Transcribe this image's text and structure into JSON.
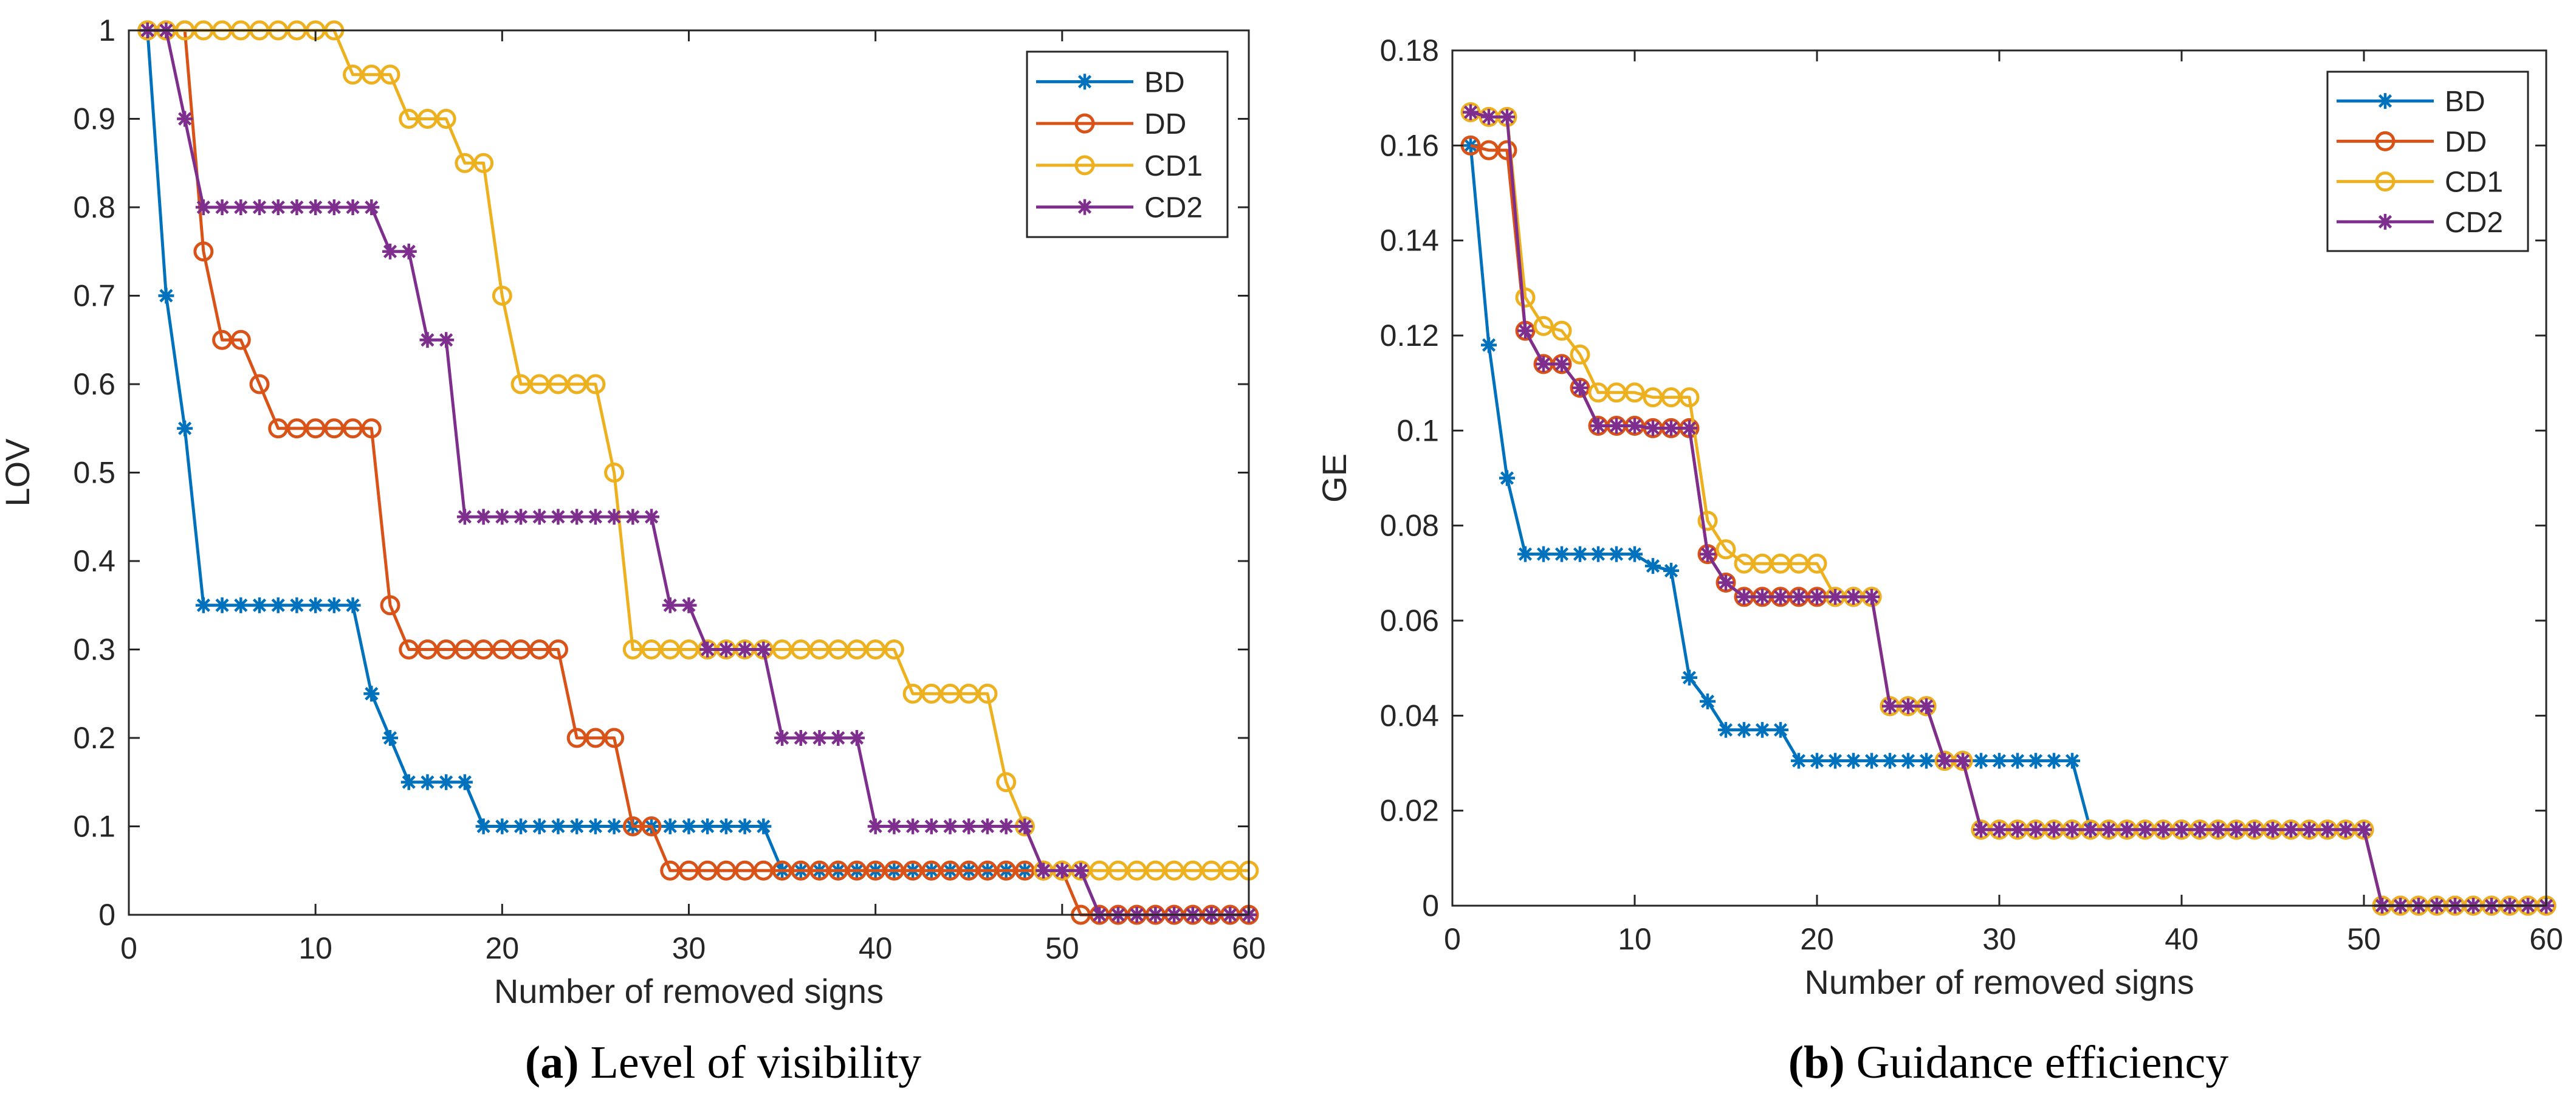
{
  "chart_data": [
    {
      "type": "line",
      "id": "a",
      "title": "",
      "xlabel": "Number of removed signs",
      "ylabel": "LOV",
      "xlim": [
        0,
        60
      ],
      "ylim": [
        0,
        1
      ],
      "xticks": [
        0,
        10,
        20,
        30,
        40,
        50,
        60
      ],
      "xtick_labels": [
        "0",
        "10",
        "20",
        "30",
        "40",
        "50",
        "60"
      ],
      "yticks": [
        0,
        0.1,
        0.2,
        0.3,
        0.4,
        0.5,
        0.6,
        0.7,
        0.8,
        0.9,
        1
      ],
      "ytick_labels": [
        "0",
        "0.1",
        "0.2",
        "0.3",
        "0.4",
        "0.5",
        "0.6",
        "0.7",
        "0.8",
        "0.9",
        "1"
      ],
      "legend_position": "top-right",
      "x": [
        1,
        2,
        3,
        4,
        5,
        6,
        7,
        8,
        9,
        10,
        11,
        12,
        13,
        14,
        15,
        16,
        17,
        18,
        19,
        20,
        21,
        22,
        23,
        24,
        25,
        26,
        27,
        28,
        29,
        30,
        31,
        32,
        33,
        34,
        35,
        36,
        37,
        38,
        39,
        40,
        41,
        42,
        43,
        44,
        45,
        46,
        47,
        48,
        49,
        50,
        51,
        52,
        53,
        54,
        55,
        56,
        57,
        58,
        59,
        60
      ],
      "series": [
        {
          "name": "BD",
          "marker": "asterisk",
          "color": "#0072BD",
          "values": [
            1,
            0.7,
            0.55,
            0.35,
            0.35,
            0.35,
            0.35,
            0.35,
            0.35,
            0.35,
            0.35,
            0.35,
            0.25,
            0.2,
            0.15,
            0.15,
            0.15,
            0.15,
            0.1,
            0.1,
            0.1,
            0.1,
            0.1,
            0.1,
            0.1,
            0.1,
            0.1,
            0.1,
            0.1,
            0.1,
            0.1,
            0.1,
            0.1,
            0.1,
            0.05,
            0.05,
            0.05,
            0.05,
            0.05,
            0.05,
            0.05,
            0.05,
            0.05,
            0.05,
            0.05,
            0.05,
            0.05,
            0.05,
            0.05,
            0.05,
            0.05,
            0,
            0,
            0,
            0,
            0,
            0,
            0,
            0,
            0
          ]
        },
        {
          "name": "DD",
          "marker": "circle",
          "color": "#D95319",
          "values": [
            1,
            1,
            1,
            0.75,
            0.65,
            0.65,
            0.6,
            0.55,
            0.55,
            0.55,
            0.55,
            0.55,
            0.55,
            0.35,
            0.3,
            0.3,
            0.3,
            0.3,
            0.3,
            0.3,
            0.3,
            0.3,
            0.3,
            0.2,
            0.2,
            0.2,
            0.1,
            0.1,
            0.05,
            0.05,
            0.05,
            0.05,
            0.05,
            0.05,
            0.05,
            0.05,
            0.05,
            0.05,
            0.05,
            0.05,
            0.05,
            0.05,
            0.05,
            0.05,
            0.05,
            0.05,
            0.05,
            0.05,
            0.05,
            0.05,
            0,
            0,
            0,
            0,
            0,
            0,
            0,
            0,
            0,
            0
          ]
        },
        {
          "name": "CD1",
          "marker": "circle",
          "color": "#EDB120",
          "values": [
            1,
            1,
            1,
            1,
            1,
            1,
            1,
            1,
            1,
            1,
            1,
            0.95,
            0.95,
            0.95,
            0.9,
            0.9,
            0.9,
            0.85,
            0.85,
            0.7,
            0.6,
            0.6,
            0.6,
            0.6,
            0.6,
            0.5,
            0.3,
            0.3,
            0.3,
            0.3,
            0.3,
            0.3,
            0.3,
            0.3,
            0.3,
            0.3,
            0.3,
            0.3,
            0.3,
            0.3,
            0.3,
            0.25,
            0.25,
            0.25,
            0.25,
            0.25,
            0.15,
            0.1,
            0.05,
            0.05,
            0.05,
            0.05,
            0.05,
            0.05,
            0.05,
            0.05,
            0.05,
            0.05,
            0.05,
            0.05
          ]
        },
        {
          "name": "CD2",
          "marker": "asterisk",
          "color": "#7E2F8E",
          "values": [
            1,
            1,
            0.9,
            0.8,
            0.8,
            0.8,
            0.8,
            0.8,
            0.8,
            0.8,
            0.8,
            0.8,
            0.8,
            0.75,
            0.75,
            0.65,
            0.65,
            0.45,
            0.45,
            0.45,
            0.45,
            0.45,
            0.45,
            0.45,
            0.45,
            0.45,
            0.45,
            0.45,
            0.35,
            0.35,
            0.3,
            0.3,
            0.3,
            0.3,
            0.2,
            0.2,
            0.2,
            0.2,
            0.2,
            0.1,
            0.1,
            0.1,
            0.1,
            0.1,
            0.1,
            0.1,
            0.1,
            0.1,
            0.05,
            0.05,
            0.05,
            0,
            0,
            0,
            0,
            0,
            0,
            0,
            0,
            0
          ]
        }
      ]
    },
    {
      "type": "line",
      "id": "b",
      "title": "",
      "xlabel": "Number of removed signs",
      "ylabel": "GE",
      "xlim": [
        0,
        60
      ],
      "ylim": [
        0,
        0.18
      ],
      "xticks": [
        0,
        10,
        20,
        30,
        40,
        50,
        60
      ],
      "xtick_labels": [
        "0",
        "10",
        "20",
        "30",
        "40",
        "50",
        "60"
      ],
      "yticks": [
        0,
        0.02,
        0.04,
        0.06,
        0.08,
        0.1,
        0.12,
        0.14,
        0.16,
        0.18
      ],
      "ytick_labels": [
        "0",
        "0.02",
        "0.04",
        "0.06",
        "0.08",
        "0.1",
        "0.12",
        "0.14",
        "0.16",
        "0.18"
      ],
      "legend_position": "top-right",
      "x": [
        1,
        2,
        3,
        4,
        5,
        6,
        7,
        8,
        9,
        10,
        11,
        12,
        13,
        14,
        15,
        16,
        17,
        18,
        19,
        20,
        21,
        22,
        23,
        24,
        25,
        26,
        27,
        28,
        29,
        30,
        31,
        32,
        33,
        34,
        35,
        36,
        37,
        38,
        39,
        40,
        41,
        42,
        43,
        44,
        45,
        46,
        47,
        48,
        49,
        50,
        51,
        52,
        53,
        54,
        55,
        56,
        57,
        58,
        59,
        60
      ],
      "series": [
        {
          "name": "BD",
          "marker": "asterisk",
          "color": "#0072BD",
          "values": [
            0.16,
            0.118,
            0.09,
            0.074,
            0.074,
            0.074,
            0.074,
            0.074,
            0.074,
            0.074,
            0.0715,
            0.0705,
            0.048,
            0.043,
            0.037,
            0.037,
            0.037,
            0.037,
            0.0305,
            0.0305,
            0.0305,
            0.0305,
            0.0305,
            0.0305,
            0.0305,
            0.0305,
            0.0305,
            0.0305,
            0.0305,
            0.0305,
            0.0305,
            0.0305,
            0.0305,
            0.0305,
            0.016,
            0.016,
            0.016,
            0.016,
            0.016,
            0.016,
            0.016,
            0.016,
            0.016,
            0.016,
            0.016,
            0.016,
            0.016,
            0.016,
            0.016,
            0.016,
            0,
            0,
            0,
            0,
            0,
            0,
            0,
            0,
            0,
            0
          ]
        },
        {
          "name": "DD",
          "marker": "circle",
          "color": "#D95319",
          "values": [
            0.16,
            0.159,
            0.159,
            0.121,
            0.114,
            0.114,
            0.109,
            0.101,
            0.101,
            0.101,
            0.1005,
            0.1005,
            0.1005,
            0.074,
            0.068,
            0.065,
            0.065,
            0.065,
            0.065,
            0.065,
            0.065,
            0.065,
            0.065,
            0.042,
            0.042,
            0.042,
            0.0305,
            0.0305,
            0.016,
            0.016,
            0.016,
            0.016,
            0.016,
            0.016,
            0.016,
            0.016,
            0.016,
            0.016,
            0.016,
            0.016,
            0.016,
            0.016,
            0.016,
            0.016,
            0.016,
            0.016,
            0.016,
            0.016,
            0.016,
            0.016,
            0,
            0,
            0,
            0,
            0,
            0,
            0,
            0,
            0,
            0
          ]
        },
        {
          "name": "CD1",
          "marker": "circle",
          "color": "#EDB120",
          "values": [
            0.167,
            0.166,
            0.166,
            0.128,
            0.122,
            0.121,
            0.116,
            0.108,
            0.108,
            0.108,
            0.107,
            0.107,
            0.107,
            0.081,
            0.075,
            0.072,
            0.072,
            0.072,
            0.072,
            0.072,
            0.065,
            0.065,
            0.065,
            0.042,
            0.042,
            0.042,
            0.0305,
            0.0305,
            0.016,
            0.016,
            0.016,
            0.016,
            0.016,
            0.016,
            0.016,
            0.016,
            0.016,
            0.016,
            0.016,
            0.016,
            0.016,
            0.016,
            0.016,
            0.016,
            0.016,
            0.016,
            0.016,
            0.016,
            0.016,
            0.016,
            0,
            0,
            0,
            0,
            0,
            0,
            0,
            0,
            0,
            0
          ]
        },
        {
          "name": "CD2",
          "marker": "asterisk",
          "color": "#7E2F8E",
          "values": [
            0.167,
            0.166,
            0.166,
            0.121,
            0.114,
            0.114,
            0.109,
            0.101,
            0.101,
            0.101,
            0.1005,
            0.1005,
            0.1005,
            0.074,
            0.068,
            0.065,
            0.065,
            0.065,
            0.065,
            0.065,
            0.065,
            0.065,
            0.065,
            0.042,
            0.042,
            0.042,
            0.0305,
            0.0305,
            0.016,
            0.016,
            0.016,
            0.016,
            0.016,
            0.016,
            0.016,
            0.016,
            0.016,
            0.016,
            0.016,
            0.016,
            0.016,
            0.016,
            0.016,
            0.016,
            0.016,
            0.016,
            0.016,
            0.016,
            0.016,
            0.016,
            0,
            0,
            0,
            0,
            0,
            0,
            0,
            0,
            0,
            0
          ]
        }
      ]
    }
  ],
  "captions": {
    "a": {
      "label": "(a)",
      "text": "Level of visibility"
    },
    "b": {
      "label": "(b)",
      "text": "Guidance efficiency"
    }
  }
}
